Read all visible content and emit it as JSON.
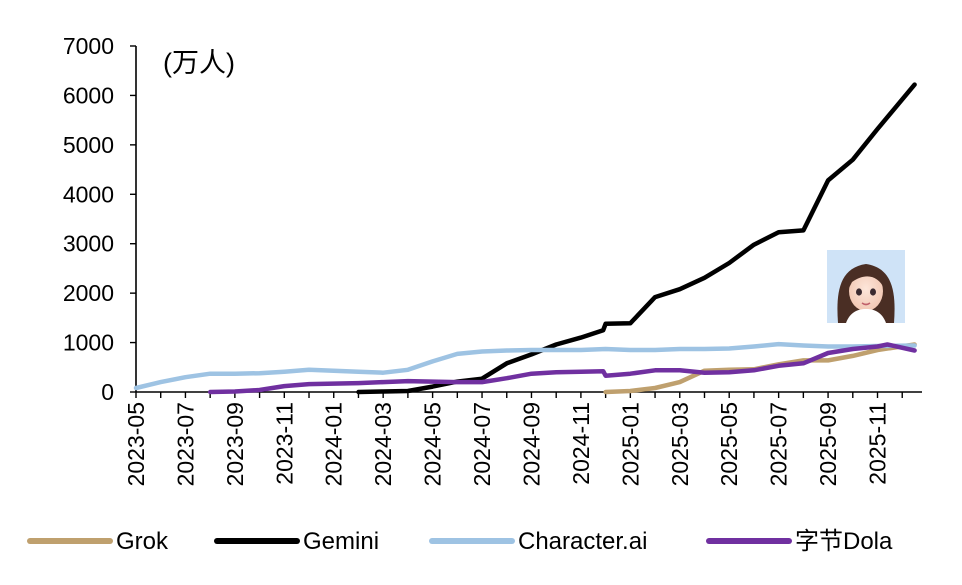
{
  "chart_data": {
    "type": "line",
    "unit_label": "(万人)",
    "y_ticks": [
      "0",
      "1000",
      "2000",
      "3000",
      "4000",
      "5000",
      "6000",
      "7000"
    ],
    "ylim": [
      0,
      7000
    ],
    "x_ticks": [
      "2023-05",
      "2023-07",
      "2023-09",
      "2023-11",
      "2024-01",
      "2024-03",
      "2024-05",
      "2024-07",
      "2024-09",
      "2024-11",
      "2025-01",
      "2025-03",
      "2025-05",
      "2025-07",
      "2025-09",
      "2025-11"
    ],
    "xlim": [
      0,
      31.8
    ],
    "grid": false,
    "legend_position": "bottom",
    "series": [
      {
        "name": "Grok",
        "color": "#bfa06e",
        "points": [
          [
            19.0,
            0
          ],
          [
            20.0,
            20
          ],
          [
            21.0,
            80
          ],
          [
            22.0,
            200
          ],
          [
            23.0,
            430
          ],
          [
            24.0,
            450
          ],
          [
            25.0,
            460
          ],
          [
            26.0,
            560
          ],
          [
            27.0,
            640
          ],
          [
            28.0,
            640
          ],
          [
            29.0,
            730
          ],
          [
            30.0,
            850
          ],
          [
            31.5,
            960
          ]
        ]
      },
      {
        "name": "Gemini",
        "color": "#000000",
        "points": [
          [
            9.0,
            0
          ],
          [
            10.0,
            10
          ],
          [
            11.0,
            20
          ],
          [
            12.0,
            110
          ],
          [
            13.0,
            210
          ],
          [
            14.0,
            270
          ],
          [
            15.0,
            580
          ],
          [
            16.0,
            760
          ],
          [
            17.0,
            960
          ],
          [
            18.0,
            1100
          ],
          [
            18.9,
            1250
          ],
          [
            19.0,
            1380
          ],
          [
            20.0,
            1390
          ],
          [
            21.0,
            1920
          ],
          [
            22.0,
            2080
          ],
          [
            23.0,
            2310
          ],
          [
            24.0,
            2610
          ],
          [
            25.0,
            2980
          ],
          [
            26.0,
            3230
          ],
          [
            27.0,
            3270
          ],
          [
            28.0,
            4280
          ],
          [
            29.0,
            4700
          ],
          [
            30.0,
            5320
          ],
          [
            31.5,
            6220
          ]
        ]
      },
      {
        "name": "Character.ai",
        "color": "#9ec3e3",
        "points": [
          [
            0.0,
            80
          ],
          [
            1.0,
            200
          ],
          [
            2.0,
            300
          ],
          [
            3.0,
            370
          ],
          [
            4.0,
            370
          ],
          [
            5.0,
            380
          ],
          [
            6.0,
            410
          ],
          [
            7.0,
            450
          ],
          [
            8.0,
            430
          ],
          [
            9.0,
            410
          ],
          [
            10.0,
            390
          ],
          [
            11.0,
            450
          ],
          [
            12.0,
            620
          ],
          [
            13.0,
            770
          ],
          [
            14.0,
            820
          ],
          [
            15.0,
            840
          ],
          [
            16.0,
            850
          ],
          [
            17.0,
            850
          ],
          [
            18.0,
            850
          ],
          [
            19.0,
            870
          ],
          [
            20.0,
            850
          ],
          [
            21.0,
            850
          ],
          [
            22.0,
            870
          ],
          [
            23.0,
            870
          ],
          [
            24.0,
            880
          ],
          [
            25.0,
            920
          ],
          [
            26.0,
            970
          ],
          [
            27.0,
            940
          ],
          [
            28.0,
            920
          ],
          [
            29.0,
            920
          ],
          [
            30.0,
            930
          ],
          [
            31.5,
            940
          ]
        ]
      },
      {
        "name": "字节Dola",
        "color": "#7030a0",
        "points": [
          [
            3.0,
            0
          ],
          [
            4.0,
            10
          ],
          [
            5.0,
            40
          ],
          [
            6.0,
            120
          ],
          [
            7.0,
            160
          ],
          [
            8.0,
            170
          ],
          [
            9.0,
            180
          ],
          [
            10.0,
            200
          ],
          [
            11.0,
            220
          ],
          [
            12.0,
            210
          ],
          [
            13.0,
            200
          ],
          [
            14.0,
            200
          ],
          [
            15.0,
            280
          ],
          [
            16.0,
            370
          ],
          [
            17.0,
            400
          ],
          [
            18.0,
            410
          ],
          [
            18.9,
            420
          ],
          [
            19.0,
            330
          ],
          [
            20.0,
            370
          ],
          [
            21.0,
            440
          ],
          [
            22.0,
            440
          ],
          [
            23.0,
            390
          ],
          [
            24.0,
            400
          ],
          [
            25.0,
            440
          ],
          [
            26.0,
            530
          ],
          [
            27.0,
            580
          ],
          [
            28.0,
            790
          ],
          [
            29.0,
            870
          ],
          [
            30.0,
            920
          ],
          [
            30.4,
            960
          ],
          [
            31.5,
            840
          ]
        ]
      }
    ]
  }
}
